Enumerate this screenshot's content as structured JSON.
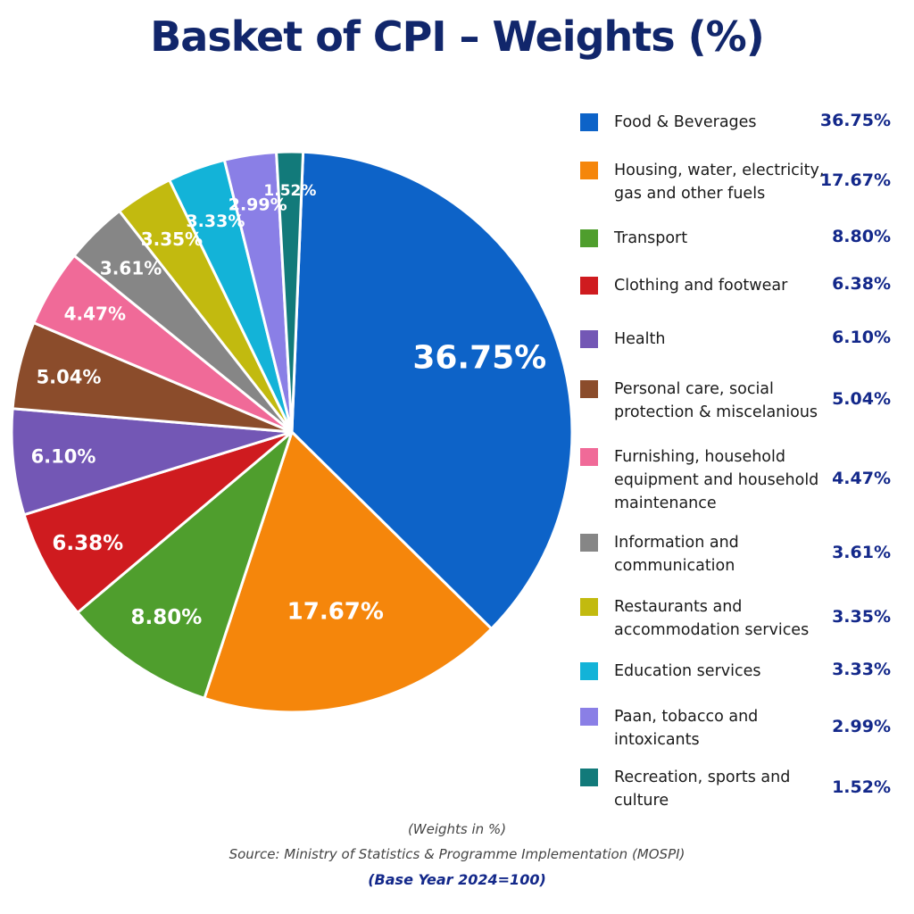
{
  "chart_data": {
    "type": "pie",
    "title": "Basket of CPI – Weights (%)",
    "slices": [
      {
        "label": "Food & Beverages",
        "value": 36.75,
        "display": "36.75%",
        "color": "#0d63c8"
      },
      {
        "label": "Housing, water, electricity, gas and other fuels",
        "value": 17.67,
        "display": "17.67%",
        "color": "#f5860b"
      },
      {
        "label": "Transport",
        "value": 8.8,
        "display": "8.80%",
        "color": "#4f9e2d"
      },
      {
        "label": "Clothing and footwear",
        "value": 6.38,
        "display": "6.38%",
        "color": "#cf1b1f"
      },
      {
        "label": "Health",
        "value": 6.1,
        "display": "6.10%",
        "color": "#7357b5"
      },
      {
        "label": "Personal care, social protection & miscelanious",
        "value": 5.04,
        "display": "5.04%",
        "color": "#8b4c2b"
      },
      {
        "label": "Furnishing, household equipment and household maintenance",
        "value": 4.47,
        "display": "4.47%",
        "color": "#f06a98"
      },
      {
        "label": "Information and communication",
        "value": 3.61,
        "display": "3.61%",
        "color": "#868686"
      },
      {
        "label": "Restaurants and accommodation services",
        "value": 3.35,
        "display": "3.35%",
        "color": "#c2ba0f"
      },
      {
        "label": "Education services",
        "value": 3.33,
        "display": "3.33%",
        "color": "#13b3d8"
      },
      {
        "label": "Paan, tobacco and intoxicants",
        "value": 2.99,
        "display": "2.99%",
        "color": "#8a7fe6"
      },
      {
        "label": "Recreation, sports and culture",
        "value": 1.52,
        "display": "1.52%",
        "color": "#127a7a"
      }
    ],
    "legend_position": "right",
    "note": "(Weights in %)",
    "source": "Source: Ministry of Statistics & Programme Implementation (MOSPI)",
    "base_year": "(Base Year 2024=100)"
  }
}
